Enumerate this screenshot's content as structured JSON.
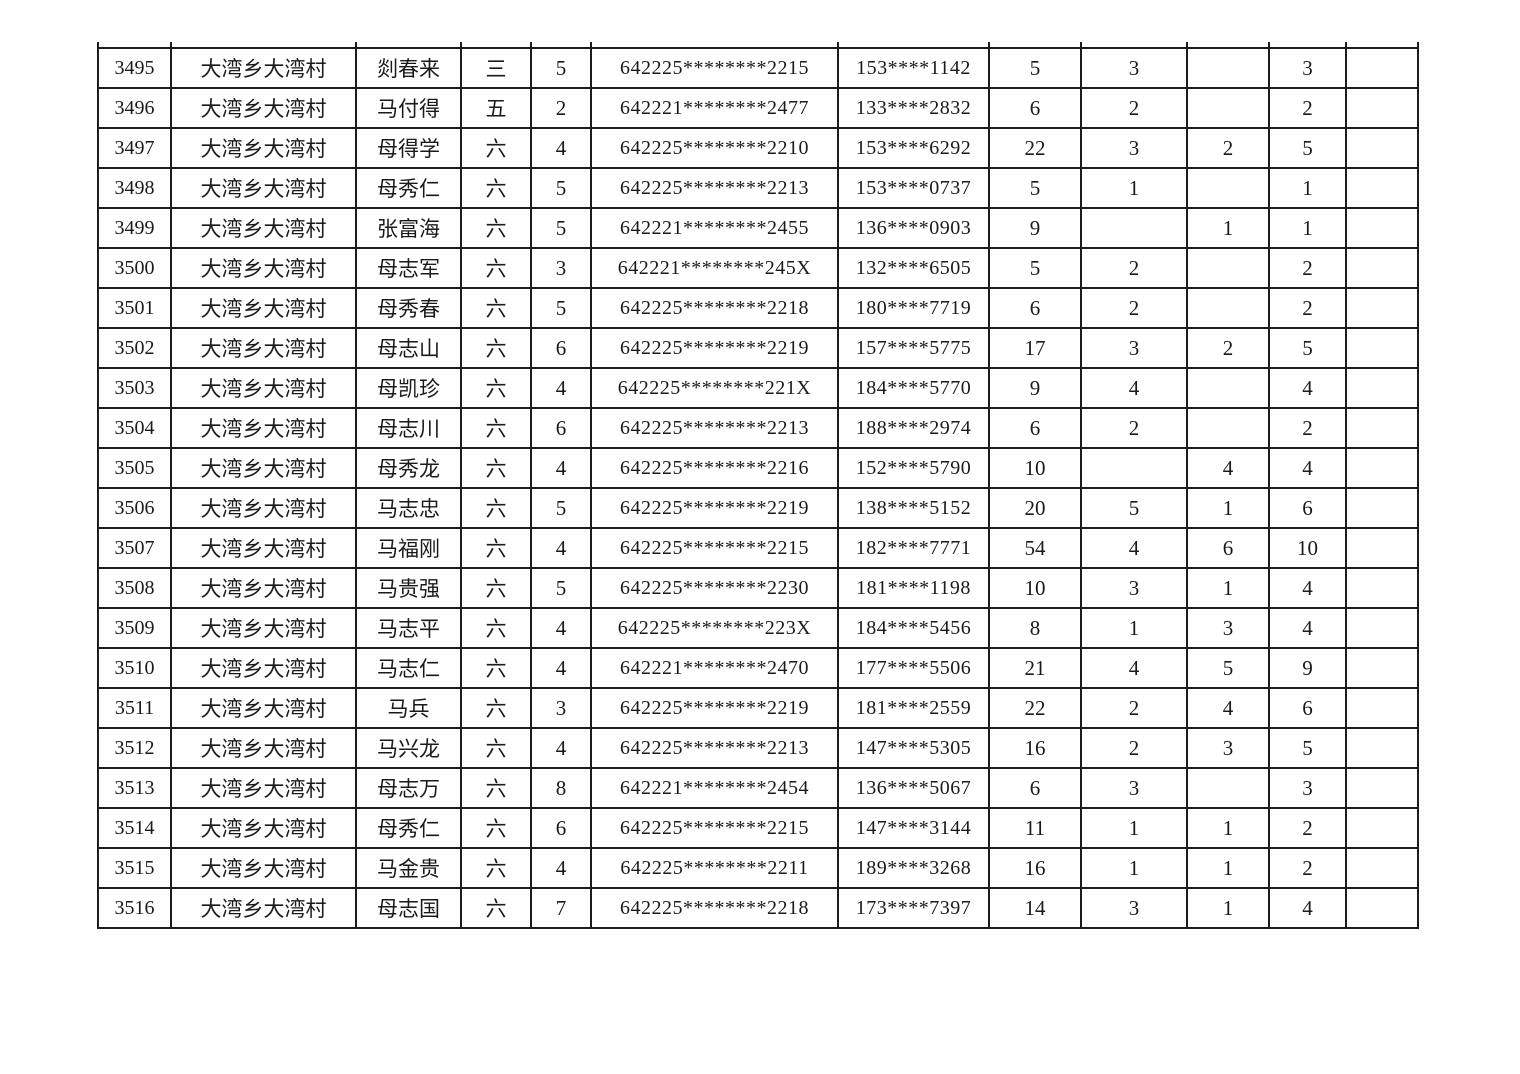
{
  "table": {
    "rows": [
      {
        "cells": [
          "3495",
          "大湾乡大湾村",
          "剡春来",
          "三",
          "5",
          "642225********2215",
          "153****1142",
          "5",
          "3",
          "",
          "3",
          ""
        ]
      },
      {
        "cells": [
          "3496",
          "大湾乡大湾村",
          "马付得",
          "五",
          "2",
          "642221********2477",
          "133****2832",
          "6",
          "2",
          "",
          "2",
          ""
        ]
      },
      {
        "cells": [
          "3497",
          "大湾乡大湾村",
          "母得学",
          "六",
          "4",
          "642225********2210",
          "153****6292",
          "22",
          "3",
          "2",
          "5",
          ""
        ]
      },
      {
        "cells": [
          "3498",
          "大湾乡大湾村",
          "母秀仁",
          "六",
          "5",
          "642225********2213",
          "153****0737",
          "5",
          "1",
          "",
          "1",
          ""
        ]
      },
      {
        "cells": [
          "3499",
          "大湾乡大湾村",
          "张富海",
          "六",
          "5",
          "642221********2455",
          "136****0903",
          "9",
          "",
          "1",
          "1",
          ""
        ]
      },
      {
        "cells": [
          "3500",
          "大湾乡大湾村",
          "母志军",
          "六",
          "3",
          "642221********245X",
          "132****6505",
          "5",
          "2",
          "",
          "2",
          ""
        ]
      },
      {
        "cells": [
          "3501",
          "大湾乡大湾村",
          "母秀春",
          "六",
          "5",
          "642225********2218",
          "180****7719",
          "6",
          "2",
          "",
          "2",
          ""
        ]
      },
      {
        "cells": [
          "3502",
          "大湾乡大湾村",
          "母志山",
          "六",
          "6",
          "642225********2219",
          "157****5775",
          "17",
          "3",
          "2",
          "5",
          ""
        ]
      },
      {
        "cells": [
          "3503",
          "大湾乡大湾村",
          "母凯珍",
          "六",
          "4",
          "642225********221X",
          "184****5770",
          "9",
          "4",
          "",
          "4",
          ""
        ]
      },
      {
        "cells": [
          "3504",
          "大湾乡大湾村",
          "母志川",
          "六",
          "6",
          "642225********2213",
          "188****2974",
          "6",
          "2",
          "",
          "2",
          ""
        ]
      },
      {
        "cells": [
          "3505",
          "大湾乡大湾村",
          "母秀龙",
          "六",
          "4",
          "642225********2216",
          "152****5790",
          "10",
          "",
          "4",
          "4",
          ""
        ]
      },
      {
        "cells": [
          "3506",
          "大湾乡大湾村",
          "马志忠",
          "六",
          "5",
          "642225********2219",
          "138****5152",
          "20",
          "5",
          "1",
          "6",
          ""
        ]
      },
      {
        "cells": [
          "3507",
          "大湾乡大湾村",
          "马福刚",
          "六",
          "4",
          "642225********2215",
          "182****7771",
          "54",
          "4",
          "6",
          "10",
          ""
        ]
      },
      {
        "cells": [
          "3508",
          "大湾乡大湾村",
          "马贵强",
          "六",
          "5",
          "642225********2230",
          "181****1198",
          "10",
          "3",
          "1",
          "4",
          ""
        ]
      },
      {
        "cells": [
          "3509",
          "大湾乡大湾村",
          "马志平",
          "六",
          "4",
          "642225********223X",
          "184****5456",
          "8",
          "1",
          "3",
          "4",
          ""
        ]
      },
      {
        "cells": [
          "3510",
          "大湾乡大湾村",
          "马志仁",
          "六",
          "4",
          "642221********2470",
          "177****5506",
          "21",
          "4",
          "5",
          "9",
          ""
        ]
      },
      {
        "cells": [
          "3511",
          "大湾乡大湾村",
          "马兵",
          "六",
          "3",
          "642225********2219",
          "181****2559",
          "22",
          "2",
          "4",
          "6",
          ""
        ]
      },
      {
        "cells": [
          "3512",
          "大湾乡大湾村",
          "马兴龙",
          "六",
          "4",
          "642225********2213",
          "147****5305",
          "16",
          "2",
          "3",
          "5",
          ""
        ]
      },
      {
        "cells": [
          "3513",
          "大湾乡大湾村",
          "母志万",
          "六",
          "8",
          "642221********2454",
          "136****5067",
          "6",
          "3",
          "",
          "3",
          ""
        ]
      },
      {
        "cells": [
          "3514",
          "大湾乡大湾村",
          "母秀仁",
          "六",
          "6",
          "642225********2215",
          "147****3144",
          "11",
          "1",
          "1",
          "2",
          ""
        ]
      },
      {
        "cells": [
          "3515",
          "大湾乡大湾村",
          "马金贵",
          "六",
          "4",
          "642225********2211",
          "189****3268",
          "16",
          "1",
          "1",
          "2",
          ""
        ]
      },
      {
        "cells": [
          "3516",
          "大湾乡大湾村",
          "母志国",
          "六",
          "7",
          "642225********2218",
          "173****7397",
          "14",
          "3",
          "1",
          "4",
          ""
        ]
      }
    ]
  }
}
